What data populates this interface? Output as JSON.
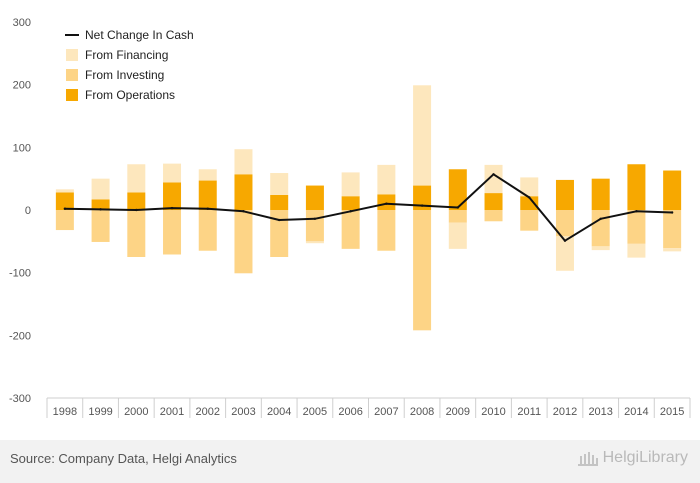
{
  "chart_data": {
    "type": "bar",
    "title": "",
    "xlabel": "",
    "ylabel": "",
    "ylim": [
      -300,
      300
    ],
    "yticks": [
      -300,
      -200,
      -100,
      0,
      100,
      200,
      300
    ],
    "categories": [
      "1998",
      "1999",
      "2000",
      "2001",
      "2002",
      "2003",
      "2004",
      "2005",
      "2006",
      "2007",
      "2008",
      "2009",
      "2010",
      "2011",
      "2012",
      "2013",
      "2014",
      "2015"
    ],
    "series": [
      {
        "name": "Net Change In Cash",
        "type": "line",
        "color": "#111111",
        "values": [
          2,
          1,
          0,
          3,
          2,
          -2,
          -16,
          -14,
          -2,
          10,
          7,
          4,
          57,
          20,
          -49,
          -14,
          -2,
          -4
        ]
      },
      {
        "name": "From Financing",
        "type": "bar",
        "color": "#fde7bd",
        "values": [
          5,
          33,
          45,
          30,
          18,
          40,
          35,
          -3,
          38,
          47,
          160,
          -42,
          45,
          30,
          -55,
          -6,
          -22,
          -5
        ]
      },
      {
        "name": "From Investing",
        "type": "bar",
        "color": "#fdd486",
        "values": [
          -32,
          -51,
          -75,
          -71,
          -65,
          -101,
          -75,
          -50,
          -62,
          -65,
          -192,
          -20,
          -18,
          -33,
          -42,
          -58,
          -54,
          -61
        ]
      },
      {
        "name": "From Operations",
        "type": "bar",
        "color": "#f7a800",
        "values": [
          28,
          17,
          28,
          44,
          47,
          57,
          24,
          39,
          22,
          25,
          39,
          65,
          27,
          22,
          48,
          50,
          73,
          63
        ]
      }
    ],
    "grid": false,
    "legend_position": "top-left"
  },
  "footer": {
    "source": "Source: Company Data, Helgi Analytics",
    "logo_text": "HelgiLibrary"
  }
}
